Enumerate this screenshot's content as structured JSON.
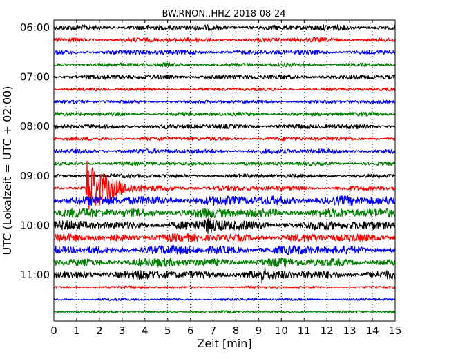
{
  "chart_data": {
    "type": "line",
    "title": "BW.RNON..HHZ 2018-08-24",
    "xlabel": "Zeit  [min]",
    "ylabel": "UTC (Lokalzeit = UTC + 02:00)",
    "xlim": [
      0,
      15
    ],
    "x_ticks": [
      "0",
      "1",
      "2",
      "3",
      "4",
      "5",
      "6",
      "7",
      "8",
      "9",
      "10",
      "11",
      "12",
      "13",
      "14",
      "15"
    ],
    "y_ticks": [
      "06:00",
      "07:00",
      "08:00",
      "09:00",
      "10:00",
      "11:00"
    ],
    "trace_interval_min": 15,
    "grid": "vertical dotted",
    "colors": [
      "#000000",
      "#ff0000",
      "#0000ff",
      "#008000"
    ],
    "series": [
      {
        "start": "06:00",
        "color": "black",
        "amplitude": 0.35
      },
      {
        "start": "06:15",
        "color": "red",
        "amplitude": 0.3
      },
      {
        "start": "06:30",
        "color": "blue",
        "amplitude": 0.3
      },
      {
        "start": "06:45",
        "color": "green",
        "amplitude": 0.25
      },
      {
        "start": "07:00",
        "color": "black",
        "amplitude": 0.3
      },
      {
        "start": "07:15",
        "color": "red",
        "amplitude": 0.2
      },
      {
        "start": "07:30",
        "color": "blue",
        "amplitude": 0.2
      },
      {
        "start": "07:45",
        "color": "green",
        "amplitude": 0.25
      },
      {
        "start": "08:00",
        "color": "black",
        "amplitude": 0.3
      },
      {
        "start": "08:15",
        "color": "red",
        "amplitude": 0.25
      },
      {
        "start": "08:30",
        "color": "blue",
        "amplitude": 0.3
      },
      {
        "start": "08:45",
        "color": "green",
        "amplitude": 0.25
      },
      {
        "start": "09:00",
        "color": "black",
        "amplitude": 0.25
      },
      {
        "start": "09:15",
        "color": "red",
        "amplitude": 0.3
      },
      {
        "start": "09:30",
        "color": "blue",
        "amplitude": 0.6
      },
      {
        "start": "09:45",
        "color": "green",
        "amplitude": 0.6
      },
      {
        "start": "10:00",
        "color": "black",
        "amplitude": 0.55
      },
      {
        "start": "10:15",
        "color": "red",
        "amplitude": 0.5
      },
      {
        "start": "10:30",
        "color": "blue",
        "amplitude": 0.55
      },
      {
        "start": "10:45",
        "color": "green",
        "amplitude": 0.55
      },
      {
        "start": "11:00",
        "color": "black",
        "amplitude": 0.55
      },
      {
        "start": "11:15",
        "color": "red",
        "amplitude": 0.15
      },
      {
        "start": "11:30",
        "color": "blue",
        "amplitude": 0.15
      },
      {
        "start": "11:45",
        "color": "green",
        "amplitude": 0.15
      }
    ],
    "events": [
      {
        "start": "09:15",
        "x": 1.4,
        "amplitude": 5.0,
        "duration": 7.0
      },
      {
        "start": "11:00",
        "x": 9.1,
        "amplitude": 1.3,
        "duration": 0.3
      },
      {
        "start": "10:00",
        "x": 6.6,
        "amplitude": 0.9,
        "duration": 8.4
      }
    ]
  }
}
